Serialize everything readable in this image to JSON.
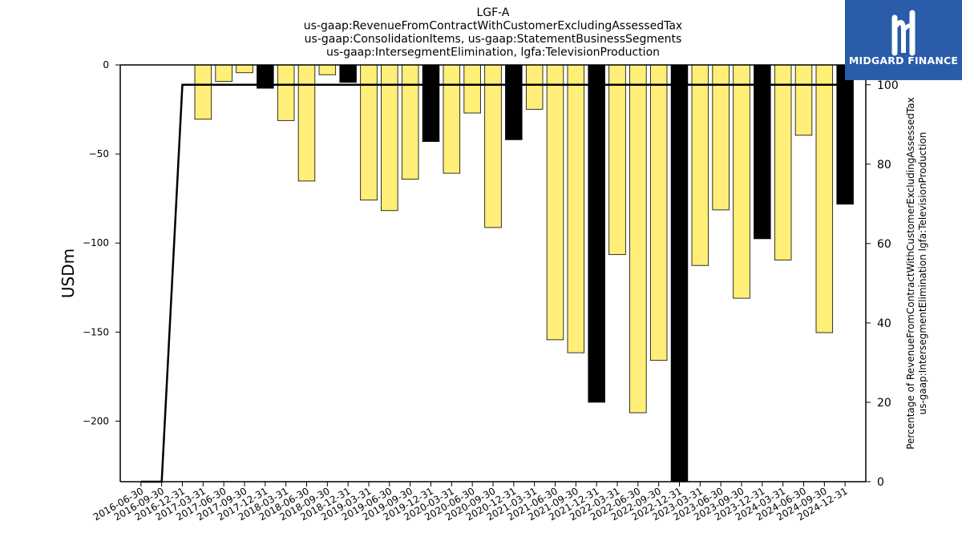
{
  "chart_data": {
    "type": "bar",
    "title_lines": [
      "LGF-A",
      "us-gaap:RevenueFromContractWithCustomerExcludingAssessedTax",
      "us-gaap:ConsolidationItems, us-gaap:StatementBusinessSegments",
      "us-gaap:IntersegmentElimination, lgfa:TelevisionProduction"
    ],
    "ylabel": "USDm",
    "ylabel_right": [
      "Percentage of RevenueFromContractWithCustomerExcludingAssessedTax",
      "us-gaap:IntersegmentElimination lgfa:TelevisionProduction"
    ],
    "ylim": [
      -234,
      0
    ],
    "yticks": [
      0,
      -50,
      -100,
      -150,
      -200
    ],
    "ylim_right": [
      0,
      105
    ],
    "yticks_right": [
      0,
      20,
      40,
      60,
      80,
      100
    ],
    "categories": [
      "2016-06-30",
      "2016-09-30",
      "2016-12-31",
      "2017-03-31",
      "2017-06-30",
      "2017-09-30",
      "2017-12-31",
      "2018-03-31",
      "2018-06-30",
      "2018-09-30",
      "2018-12-31",
      "2019-03-31",
      "2019-06-30",
      "2019-09-30",
      "2019-12-31",
      "2020-03-31",
      "2020-06-30",
      "2020-09-30",
      "2020-12-31",
      "2021-03-31",
      "2021-06-30",
      "2021-09-30",
      "2021-12-31",
      "2022-03-31",
      "2022-06-30",
      "2022-09-30",
      "2022-12-31",
      "2023-03-31",
      "2023-06-30",
      "2023-09-30",
      "2023-12-31",
      "2024-03-31",
      "2024-06-30",
      "2024-09-30",
      "2024-12-31"
    ],
    "series": [
      {
        "kind": "bar",
        "values": [
          0,
          0,
          0,
          -30.5,
          -9.3,
          -4.4,
          -13.1,
          -31.2,
          -65.2,
          -5.5,
          -9.8,
          -75.9,
          -81.8,
          -64.2,
          -43.0,
          -60.8,
          -27.0,
          -91.3,
          -42.0,
          -24.9,
          -154.3,
          -161.6,
          -189.4,
          -106.5,
          -195.3,
          -165.9,
          -234,
          -112.6,
          -81.4,
          -131.0,
          -97.6,
          -109.5,
          -39.5,
          -150.3,
          -78.2
        ],
        "colors": [
          "#ffee77",
          "#ffee77",
          "#ffee77",
          "#ffee77",
          "#ffee77",
          "#ffee77",
          "#000000",
          "#ffee77",
          "#ffee77",
          "#ffee77",
          "#000000",
          "#ffee77",
          "#ffee77",
          "#ffee77",
          "#000000",
          "#ffee77",
          "#ffee77",
          "#ffee77",
          "#000000",
          "#ffee77",
          "#ffee77",
          "#ffee77",
          "#000000",
          "#ffee77",
          "#ffee77",
          "#ffee77",
          "#000000",
          "#ffee77",
          "#ffee77",
          "#ffee77",
          "#000000",
          "#ffee77",
          "#ffee77",
          "#ffee77",
          "#000000"
        ]
      },
      {
        "kind": "line",
        "axis": "right",
        "color": "#000000",
        "values": [
          0,
          0,
          100,
          100,
          100,
          100,
          100,
          100,
          100,
          100,
          100,
          100,
          100,
          100,
          100,
          100,
          100,
          100,
          100,
          100,
          100,
          100,
          100,
          100,
          100,
          100,
          100,
          100,
          100,
          100,
          100,
          100,
          100,
          100,
          100
        ]
      }
    ],
    "grid": false
  },
  "logo": {
    "name": "MIDGARD FINANCE",
    "background": "#2a5caa",
    "icon": "midgard-logo-mark"
  }
}
